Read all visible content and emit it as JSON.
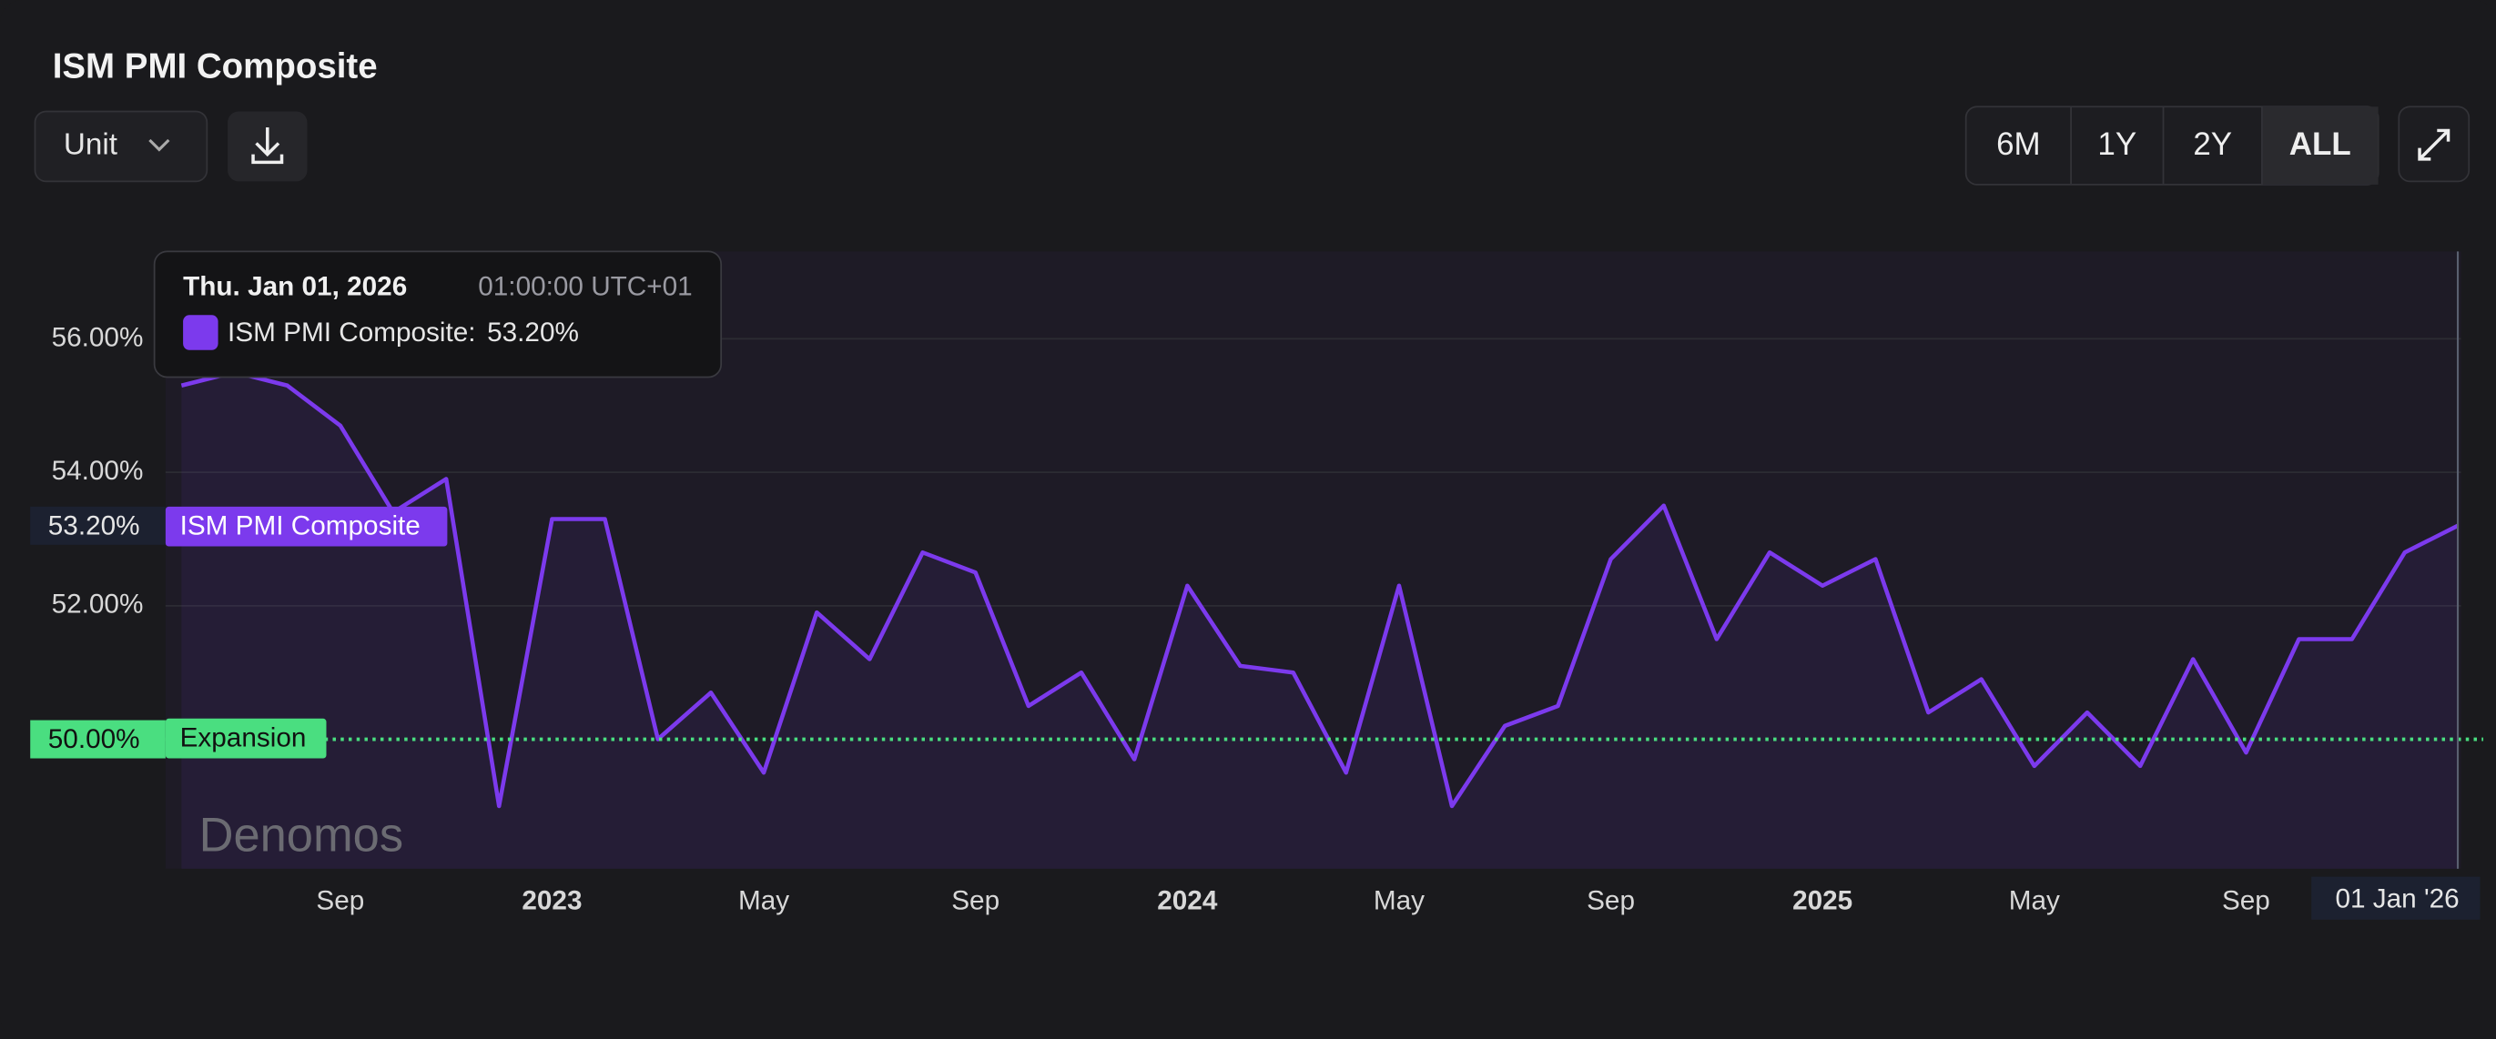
{
  "chart_data": {
    "type": "line",
    "title": "ISM PMI Composite",
    "x": [
      "2022-06",
      "2022-07",
      "2022-08",
      "2022-09",
      "2022-10",
      "2022-11",
      "2022-12",
      "2023-01",
      "2023-02",
      "2023-03",
      "2023-04",
      "2023-05",
      "2023-06",
      "2023-07",
      "2023-08",
      "2023-09",
      "2023-10",
      "2023-11",
      "2023-12",
      "2024-01",
      "2024-02",
      "2024-03",
      "2024-04",
      "2024-05",
      "2024-06",
      "2024-07",
      "2024-08",
      "2024-09",
      "2024-10",
      "2024-11",
      "2024-12",
      "2025-01",
      "2025-02",
      "2025-03",
      "2025-04",
      "2025-05",
      "2025-06",
      "2025-07",
      "2025-08",
      "2025-09",
      "2025-10",
      "2025-11",
      "2025-12",
      "2026-01"
    ],
    "series": [
      {
        "name": "ISM PMI Composite",
        "color": "#7c3aed",
        "values": [
          55.3,
          55.5,
          55.3,
          54.7,
          53.4,
          53.9,
          49.0,
          53.3,
          53.3,
          50.0,
          50.7,
          49.5,
          51.9,
          51.2,
          52.8,
          52.5,
          50.5,
          51.0,
          49.7,
          52.3,
          51.1,
          51.0,
          49.5,
          52.3,
          49.0,
          50.2,
          50.5,
          52.7,
          53.5,
          51.5,
          52.8,
          52.3,
          52.7,
          50.4,
          50.9,
          49.6,
          50.4,
          49.6,
          51.2,
          49.8,
          51.5,
          51.5,
          52.8,
          53.2
        ]
      }
    ],
    "last_value_label": "53.20%",
    "ylim": [
      48.06,
      57.31
    ],
    "yticks": [
      {
        "value": 56,
        "label": "56.00%"
      },
      {
        "value": 54,
        "label": "54.00%"
      },
      {
        "value": 52,
        "label": "52.00%"
      }
    ],
    "xticks": [
      {
        "value": "2022-09",
        "label": "Sep"
      },
      {
        "value": "2023-01",
        "label": "2023"
      },
      {
        "value": "2023-05",
        "label": "May"
      },
      {
        "value": "2023-09",
        "label": "Sep"
      },
      {
        "value": "2024-01",
        "label": "2024"
      },
      {
        "value": "2024-05",
        "label": "May"
      },
      {
        "value": "2024-09",
        "label": "Sep"
      },
      {
        "value": "2025-01",
        "label": "2025"
      },
      {
        "value": "2025-05",
        "label": "May"
      },
      {
        "value": "2025-09",
        "label": "Sep"
      }
    ],
    "crosshair_label": "01 Jan '26",
    "reference_line": {
      "value": 50,
      "value_label": "50.00%",
      "label": "Expansion",
      "color": "#4ade80"
    },
    "grid": true,
    "tooltip": {
      "date": "Thu. Jan 01, 2026",
      "time": "01:00:00 UTC+01",
      "series_label": "ISM PMI Composite:",
      "value_label": "53.20%"
    },
    "watermark": "Denomos"
  },
  "controls": {
    "unit": "Unit",
    "ranges": [
      "6M",
      "1Y",
      "2Y",
      "ALL"
    ]
  }
}
